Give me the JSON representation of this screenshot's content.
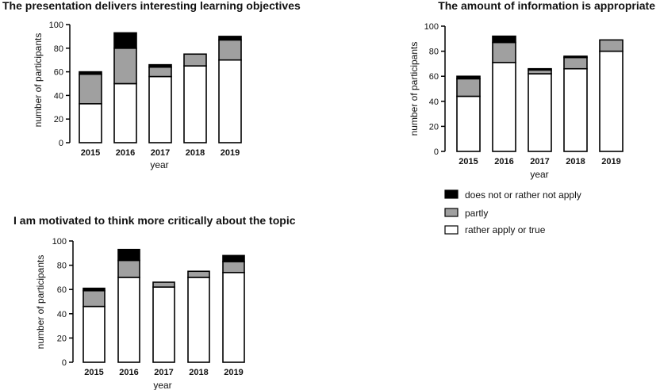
{
  "chart_data": [
    {
      "type": "bar",
      "stacked": true,
      "title": "The presentation delivers interesting learning objectives",
      "xlabel": "year",
      "ylabel": "number of participants",
      "ylim": [
        0,
        100
      ],
      "yticks": [
        0,
        20,
        40,
        60,
        80,
        100
      ],
      "categories": [
        "2015",
        "2016",
        "2017",
        "2018",
        "2019"
      ],
      "series": [
        {
          "name": "rather apply or true",
          "values": [
            33,
            50,
            56,
            65,
            70
          ]
        },
        {
          "name": "partly",
          "values": [
            25,
            30,
            8,
            10,
            17
          ]
        },
        {
          "name": "does not or rather not apply",
          "values": [
            2,
            13,
            2,
            0,
            3
          ]
        }
      ]
    },
    {
      "type": "bar",
      "stacked": true,
      "title": "The amount of information is appropriate",
      "xlabel": "year",
      "ylabel": "number of participants",
      "ylim": [
        0,
        100
      ],
      "yticks": [
        0,
        20,
        40,
        60,
        80,
        100
      ],
      "categories": [
        "2015",
        "2016",
        "2017",
        "2018",
        "2019"
      ],
      "series": [
        {
          "name": "rather apply or true",
          "values": [
            44,
            71,
            62,
            66,
            80
          ]
        },
        {
          "name": "partly",
          "values": [
            14,
            16,
            3,
            9,
            9
          ]
        },
        {
          "name": "does not or rather not apply",
          "values": [
            2,
            5,
            1,
            1,
            0
          ]
        }
      ]
    },
    {
      "type": "bar",
      "stacked": true,
      "title": "I am motivated to think more critically about the topic",
      "xlabel": "year",
      "ylabel": "number of participants",
      "ylim": [
        0,
        100
      ],
      "yticks": [
        0,
        20,
        40,
        60,
        80,
        100
      ],
      "categories": [
        "2015",
        "2016",
        "2017",
        "2018",
        "2019"
      ],
      "series": [
        {
          "name": "rather apply or true",
          "values": [
            46,
            70,
            62,
            70,
            74
          ]
        },
        {
          "name": "partly",
          "values": [
            13,
            14,
            4,
            5,
            9
          ]
        },
        {
          "name": "does not or rather not apply",
          "values": [
            2,
            9,
            0,
            0,
            5
          ]
        }
      ]
    }
  ],
  "legend": {
    "items": [
      {
        "label": "does not or rather not apply",
        "color": "#000000"
      },
      {
        "label": "partly",
        "color": "#a0a0a0"
      },
      {
        "label": "rather apply or true",
        "color": "#ffffff"
      }
    ]
  },
  "colors": {
    "rather apply or true": "#ffffff",
    "partly": "#a0a0a0",
    "does not or rather not apply": "#000000"
  }
}
